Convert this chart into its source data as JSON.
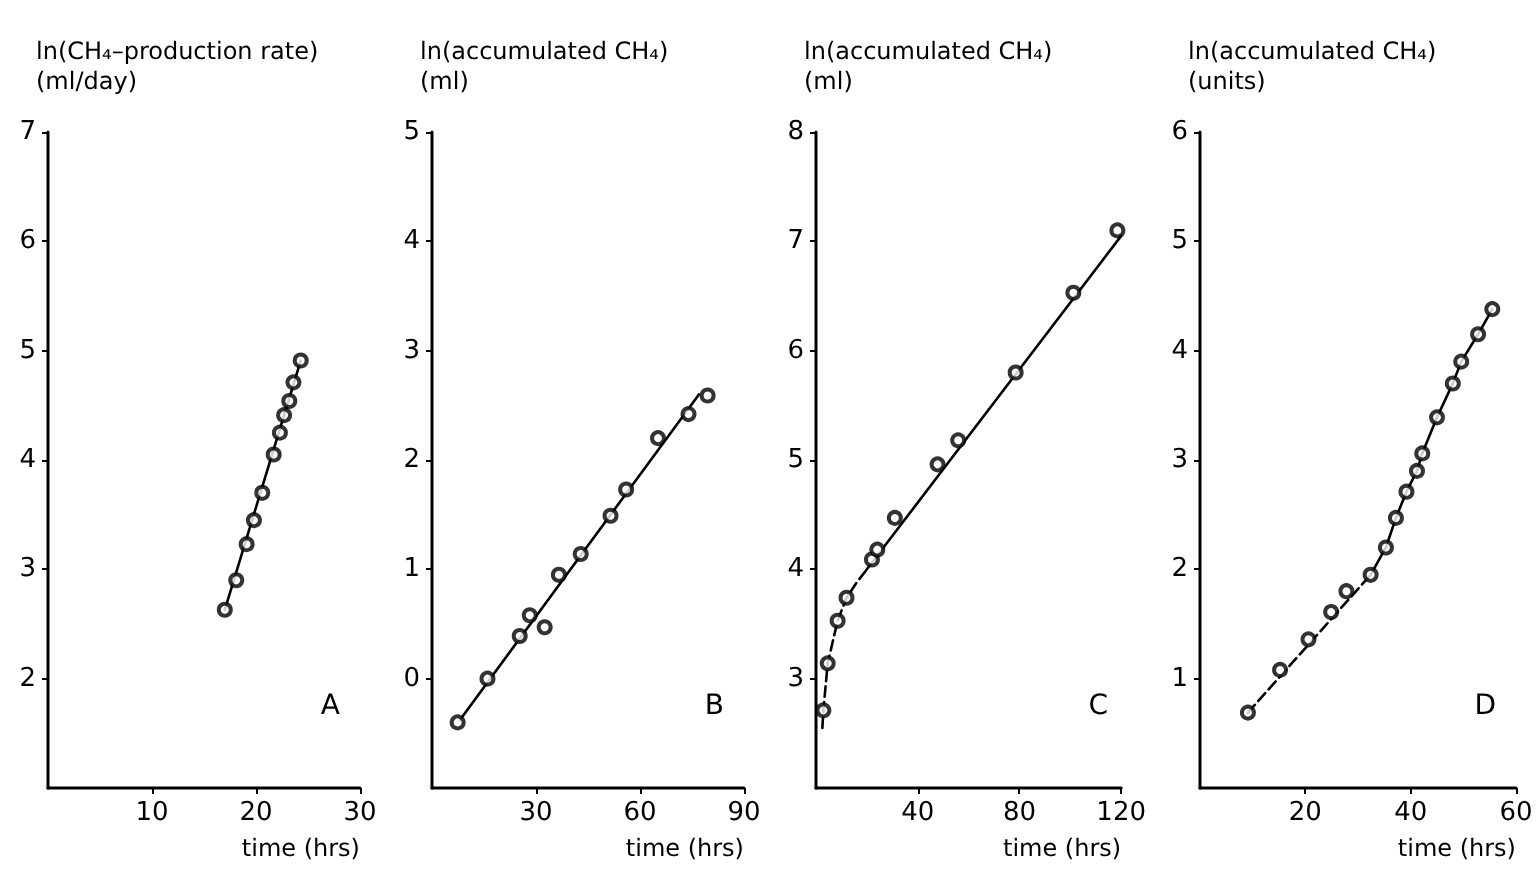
{
  "chart_data": [
    {
      "type": "scatter",
      "ylabel": "ln(CH₄–production rate)\n(ml/day)",
      "xlabel": "time (hrs)",
      "xlim": [
        0,
        30
      ],
      "xticks": [
        10,
        20,
        30
      ],
      "ylim": [
        1,
        7
      ],
      "yticks": [
        2,
        3,
        4,
        5,
        6,
        7
      ],
      "annotations": [
        "A"
      ],
      "series": [
        {
          "marker": "circle",
          "color": "#000000",
          "x": [
            17.0,
            18.1,
            19.1,
            19.8,
            20.6,
            21.7,
            22.3,
            22.7,
            23.2,
            23.6,
            24.3
          ],
          "values": [
            2.63,
            2.9,
            3.23,
            3.45,
            3.7,
            4.05,
            4.25,
            4.41,
            4.54,
            4.71,
            4.91
          ]
        },
        {
          "type": "line",
          "marker": "none",
          "line_style": "solid",
          "color": "#000000",
          "x": [
            17.0,
            24.3
          ],
          "values": [
            2.63,
            4.91
          ]
        }
      ]
    },
    {
      "type": "scatter",
      "ylabel": "ln(accumulated CH₄)\n(ml)",
      "xlabel": "time (hrs)",
      "xlim": [
        0,
        90
      ],
      "xticks": [
        30,
        60,
        90
      ],
      "ylim": [
        -1,
        5
      ],
      "yticks": [
        0,
        1,
        2,
        3,
        4,
        5
      ],
      "annotations": [
        "B"
      ],
      "series": [
        {
          "marker": "circle",
          "color": "#000000",
          "x": [
            7.4,
            16.0,
            25.3,
            28.2,
            32.5,
            36.6,
            42.9,
            51.5,
            56.0,
            65.2,
            74.0,
            79.5
          ],
          "values": [
            -0.4,
            0.0,
            0.39,
            0.58,
            0.47,
            0.95,
            1.14,
            1.49,
            1.73,
            2.2,
            2.42,
            2.59
          ]
        },
        {
          "type": "line",
          "marker": "none",
          "line_style": "solid",
          "color": "#000000",
          "x": [
            8,
            77
          ],
          "values": [
            -0.38,
            2.6
          ]
        }
      ]
    },
    {
      "type": "scatter",
      "ylabel": "ln(accumulated CH₄)\n(ml)",
      "xlabel": "time (hrs)",
      "xlim": [
        0,
        120
      ],
      "xticks": [
        40,
        80,
        120
      ],
      "ylim": [
        2,
        8
      ],
      "yticks": [
        3,
        4,
        5,
        6,
        7,
        8
      ],
      "annotations": [
        "C"
      ],
      "series": [
        {
          "marker": "circle",
          "color": "#000000",
          "x": [
            2.9,
            4.6,
            8.5,
            12.0,
            22.0,
            24.1,
            31.0,
            47.8,
            55.9,
            78.5,
            101.2,
            118.5
          ],
          "values": [
            2.71,
            3.14,
            3.53,
            3.74,
            4.09,
            4.18,
            4.47,
            4.96,
            5.18,
            5.8,
            6.53,
            7.1
          ]
        },
        {
          "type": "line",
          "marker": "none",
          "line_style": "dashed",
          "color": "#000000",
          "x": [
            2.5,
            2.9,
            4.6,
            8.5,
            12.0,
            16.0,
            20.0
          ],
          "values": [
            2.55,
            2.71,
            3.14,
            3.53,
            3.74,
            3.88,
            4.0
          ]
        },
        {
          "type": "line",
          "marker": "none",
          "line_style": "solid",
          "color": "#000000",
          "x": [
            20.0,
            120.0
          ],
          "values": [
            4.0,
            7.05
          ]
        }
      ]
    },
    {
      "type": "scatter",
      "ylabel": "ln(accumulated CH₄)\n(units)",
      "xlabel": "time (hrs)",
      "xlim": [
        0,
        60
      ],
      "xticks": [
        20,
        40,
        60
      ],
      "ylim": [
        0,
        6
      ],
      "yticks": [
        1,
        2,
        3,
        4,
        5,
        6
      ],
      "annotations": [
        "D"
      ],
      "series": [
        {
          "marker": "circle",
          "color": "#000000",
          "x": [
            9.1,
            15.2,
            20.6,
            24.9,
            27.8,
            32.4,
            35.3,
            37.2,
            39.2,
            41.2,
            42.2,
            45.0,
            48.0,
            49.6,
            52.8,
            55.5
          ],
          "values": [
            0.69,
            1.08,
            1.36,
            1.61,
            1.8,
            1.95,
            2.2,
            2.47,
            2.71,
            2.9,
            3.06,
            3.39,
            3.7,
            3.9,
            4.15,
            4.38
          ]
        },
        {
          "type": "line",
          "marker": "none",
          "line_style": "dashed",
          "color": "#000000",
          "x": [
            9.1,
            32.4
          ],
          "values": [
            0.69,
            1.95
          ]
        },
        {
          "type": "line",
          "marker": "none",
          "line_style": "solid",
          "color": "#000000",
          "x": [
            32.4,
            35.3,
            37.2,
            39.2,
            41.2,
            42.2,
            45.0,
            48.0,
            49.6,
            52.8,
            55.5
          ],
          "values": [
            1.95,
            2.2,
            2.47,
            2.71,
            2.9,
            3.06,
            3.39,
            3.7,
            3.9,
            4.15,
            4.38
          ]
        }
      ]
    }
  ]
}
